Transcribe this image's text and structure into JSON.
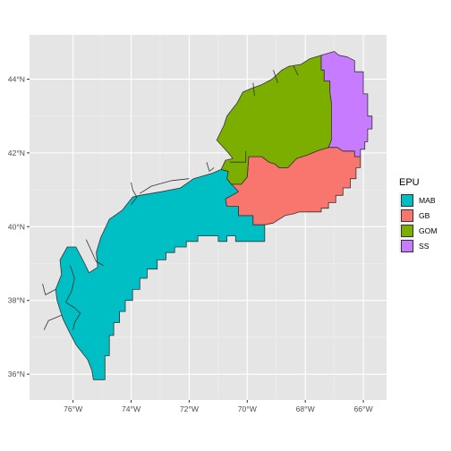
{
  "chart_data": {
    "type": "map",
    "title": "",
    "xlabel": "",
    "ylabel": "",
    "xlim": [
      -77.5,
      -65.2
    ],
    "ylim": [
      35.3,
      45.2
    ],
    "grid": true,
    "panel_background": "#e5e5e5",
    "legend": {
      "title": "EPU",
      "position": "right"
    },
    "x_ticks": [
      {
        "value": -76,
        "label": "76°W"
      },
      {
        "value": -74,
        "label": "74°W"
      },
      {
        "value": -72,
        "label": "72°W"
      },
      {
        "value": -70,
        "label": "70°W"
      },
      {
        "value": -68,
        "label": "68°W"
      },
      {
        "value": -66,
        "label": "66°W"
      }
    ],
    "y_ticks": [
      {
        "value": 36,
        "label": "36°N"
      },
      {
        "value": 38,
        "label": "38°N"
      },
      {
        "value": 40,
        "label": "40°N"
      },
      {
        "value": 42,
        "label": "42°N"
      },
      {
        "value": 44,
        "label": "44°N"
      }
    ],
    "regions": [
      {
        "name": "MAB",
        "color": "#00BFC4",
        "polygon": [
          [
            -74.9,
            35.85
          ],
          [
            -75.3,
            35.85
          ],
          [
            -75.35,
            36.1
          ],
          [
            -75.5,
            36.4
          ],
          [
            -75.9,
            36.8
          ],
          [
            -76.1,
            37.1
          ],
          [
            -76.35,
            37.5
          ],
          [
            -76.55,
            38.0
          ],
          [
            -76.6,
            38.3
          ],
          [
            -76.4,
            38.7
          ],
          [
            -76.45,
            39.1
          ],
          [
            -76.2,
            39.45
          ],
          [
            -75.9,
            39.45
          ],
          [
            -75.6,
            39.0
          ],
          [
            -75.45,
            38.75
          ],
          [
            -75.15,
            38.9
          ],
          [
            -75.2,
            39.3
          ],
          [
            -75.05,
            39.7
          ],
          [
            -74.75,
            40.2
          ],
          [
            -74.3,
            40.45
          ],
          [
            -73.95,
            40.8
          ],
          [
            -73.7,
            40.85
          ],
          [
            -72.95,
            40.95
          ],
          [
            -72.3,
            41.05
          ],
          [
            -71.85,
            41.3
          ],
          [
            -71.2,
            41.45
          ],
          [
            -70.9,
            41.55
          ],
          [
            -70.65,
            41.5
          ],
          [
            -70.7,
            41.3
          ],
          [
            -70.55,
            41.15
          ],
          [
            -70.2,
            41.15
          ],
          [
            -70.3,
            40.95
          ],
          [
            -70.75,
            40.75
          ],
          [
            -70.7,
            40.55
          ],
          [
            -70.3,
            40.55
          ],
          [
            -70.3,
            40.3
          ],
          [
            -69.8,
            40.3
          ],
          [
            -69.8,
            40.05
          ],
          [
            -69.4,
            40.05
          ],
          [
            -69.4,
            39.6
          ],
          [
            -70.0,
            39.6
          ],
          [
            -70.4,
            39.6
          ],
          [
            -70.4,
            39.75
          ],
          [
            -70.7,
            39.75
          ],
          [
            -70.7,
            39.6
          ],
          [
            -71.0,
            39.6
          ],
          [
            -71.0,
            39.75
          ],
          [
            -71.7,
            39.75
          ],
          [
            -71.7,
            39.6
          ],
          [
            -72.1,
            39.6
          ],
          [
            -72.1,
            39.45
          ],
          [
            -72.5,
            39.45
          ],
          [
            -72.5,
            39.3
          ],
          [
            -72.8,
            39.3
          ],
          [
            -72.8,
            39.1
          ],
          [
            -73.1,
            39.1
          ],
          [
            -73.1,
            38.85
          ],
          [
            -73.45,
            38.85
          ],
          [
            -73.45,
            38.6
          ],
          [
            -73.7,
            38.6
          ],
          [
            -73.7,
            38.3
          ],
          [
            -73.95,
            38.3
          ],
          [
            -73.95,
            38.0
          ],
          [
            -74.2,
            38.0
          ],
          [
            -74.2,
            37.7
          ],
          [
            -74.4,
            37.7
          ],
          [
            -74.4,
            37.4
          ],
          [
            -74.6,
            37.4
          ],
          [
            -74.6,
            37.05
          ],
          [
            -74.75,
            37.05
          ],
          [
            -74.75,
            36.5
          ],
          [
            -74.9,
            36.5
          ]
        ]
      },
      {
        "name": "GB",
        "color": "#F8766D",
        "polygon": [
          [
            -70.55,
            41.15
          ],
          [
            -70.2,
            41.15
          ],
          [
            -70.0,
            41.35
          ],
          [
            -69.95,
            41.9
          ],
          [
            -69.5,
            41.9
          ],
          [
            -69.25,
            41.75
          ],
          [
            -69.05,
            41.7
          ],
          [
            -68.9,
            41.6
          ],
          [
            -68.6,
            41.6
          ],
          [
            -68.3,
            41.85
          ],
          [
            -67.9,
            41.95
          ],
          [
            -67.6,
            42.05
          ],
          [
            -67.2,
            42.15
          ],
          [
            -66.9,
            42.15
          ],
          [
            -66.7,
            42.05
          ],
          [
            -66.3,
            42.05
          ],
          [
            -66.3,
            41.9
          ],
          [
            -66.1,
            41.9
          ],
          [
            -66.1,
            41.6
          ],
          [
            -66.25,
            41.6
          ],
          [
            -66.25,
            41.3
          ],
          [
            -66.45,
            41.3
          ],
          [
            -66.45,
            41.05
          ],
          [
            -66.7,
            41.05
          ],
          [
            -66.7,
            40.85
          ],
          [
            -66.95,
            40.85
          ],
          [
            -66.95,
            40.65
          ],
          [
            -67.2,
            40.65
          ],
          [
            -67.2,
            40.5
          ],
          [
            -67.45,
            40.5
          ],
          [
            -67.45,
            40.4
          ],
          [
            -68.2,
            40.4
          ],
          [
            -68.4,
            40.35
          ],
          [
            -68.7,
            40.3
          ],
          [
            -68.9,
            40.2
          ],
          [
            -69.1,
            40.1
          ],
          [
            -69.4,
            40.05
          ],
          [
            -69.8,
            40.05
          ],
          [
            -69.8,
            40.3
          ],
          [
            -70.3,
            40.3
          ],
          [
            -70.3,
            40.55
          ],
          [
            -70.7,
            40.55
          ],
          [
            -70.75,
            40.75
          ],
          [
            -70.3,
            40.95
          ]
        ]
      },
      {
        "name": "GOM",
        "color": "#7CAE00",
        "polygon": [
          [
            -69.95,
            41.9
          ],
          [
            -70.0,
            41.35
          ],
          [
            -70.2,
            41.15
          ],
          [
            -70.55,
            41.15
          ],
          [
            -70.7,
            41.3
          ],
          [
            -70.65,
            41.5
          ],
          [
            -70.9,
            41.55
          ],
          [
            -70.75,
            41.8
          ],
          [
            -70.5,
            41.85
          ],
          [
            -70.65,
            42.0
          ],
          [
            -71.05,
            42.35
          ],
          [
            -70.8,
            42.75
          ],
          [
            -70.7,
            43.0
          ],
          [
            -70.35,
            43.35
          ],
          [
            -70.15,
            43.65
          ],
          [
            -69.85,
            43.75
          ],
          [
            -69.5,
            43.85
          ],
          [
            -69.15,
            44.0
          ],
          [
            -68.8,
            44.25
          ],
          [
            -68.55,
            44.35
          ],
          [
            -68.15,
            44.4
          ],
          [
            -67.85,
            44.55
          ],
          [
            -67.45,
            44.65
          ],
          [
            -67.45,
            44.25
          ],
          [
            -67.35,
            44.25
          ],
          [
            -67.35,
            43.95
          ],
          [
            -67.15,
            43.95
          ],
          [
            -67.15,
            43.65
          ],
          [
            -67.1,
            43.35
          ],
          [
            -67.1,
            42.9
          ],
          [
            -67.1,
            42.35
          ],
          [
            -67.2,
            42.15
          ],
          [
            -67.6,
            42.05
          ],
          [
            -67.9,
            41.95
          ],
          [
            -68.3,
            41.85
          ],
          [
            -68.6,
            41.6
          ],
          [
            -68.9,
            41.6
          ],
          [
            -69.05,
            41.7
          ],
          [
            -69.25,
            41.75
          ],
          [
            -69.5,
            41.9
          ]
        ]
      },
      {
        "name": "SS",
        "color": "#C77CFF",
        "polygon": [
          [
            -67.45,
            44.65
          ],
          [
            -67.0,
            44.75
          ],
          [
            -66.85,
            44.65
          ],
          [
            -66.55,
            44.6
          ],
          [
            -66.3,
            44.5
          ],
          [
            -66.3,
            44.2
          ],
          [
            -66.0,
            44.2
          ],
          [
            -66.0,
            43.6
          ],
          [
            -65.85,
            43.6
          ],
          [
            -65.85,
            43.0
          ],
          [
            -65.7,
            43.0
          ],
          [
            -65.7,
            42.65
          ],
          [
            -65.85,
            42.65
          ],
          [
            -65.85,
            42.3
          ],
          [
            -65.95,
            42.3
          ],
          [
            -65.95,
            42.1
          ],
          [
            -66.1,
            42.1
          ],
          [
            -66.1,
            41.9
          ],
          [
            -66.3,
            41.9
          ],
          [
            -66.3,
            42.05
          ],
          [
            -66.7,
            42.05
          ],
          [
            -66.9,
            42.15
          ],
          [
            -67.2,
            42.15
          ],
          [
            -67.1,
            42.35
          ],
          [
            -67.1,
            42.9
          ],
          [
            -67.1,
            43.35
          ],
          [
            -67.15,
            43.65
          ],
          [
            -67.15,
            43.95
          ],
          [
            -67.35,
            43.95
          ],
          [
            -67.35,
            44.25
          ],
          [
            -67.45,
            44.25
          ]
        ]
      }
    ],
    "coastline_features": [
      [
        [
          -76.1,
          38.95
        ],
        [
          -75.95,
          38.6
        ],
        [
          -76.05,
          38.25
        ],
        [
          -76.25,
          37.95
        ],
        [
          -75.95,
          37.8
        ],
        [
          -75.75,
          37.65
        ],
        [
          -75.95,
          37.4
        ],
        [
          -76.0,
          37.2
        ]
      ],
      [
        [
          -76.6,
          38.3
        ],
        [
          -76.95,
          38.15
        ],
        [
          -77.05,
          38.45
        ]
      ],
      [
        [
          -76.4,
          37.6
        ],
        [
          -76.85,
          37.45
        ],
        [
          -77.0,
          37.2
        ]
      ],
      [
        [
          -75.55,
          39.65
        ],
        [
          -75.2,
          39.05
        ],
        [
          -74.95,
          38.95
        ]
      ],
      [
        [
          -74.0,
          40.6
        ],
        [
          -73.8,
          40.8
        ],
        [
          -73.95,
          41.0
        ],
        [
          -74.0,
          41.2
        ]
      ],
      [
        [
          -72.0,
          41.3
        ],
        [
          -72.6,
          41.25
        ],
        [
          -73.3,
          41.1
        ],
        [
          -73.7,
          40.9
        ]
      ],
      [
        [
          -71.4,
          41.75
        ],
        [
          -71.3,
          41.5
        ],
        [
          -71.15,
          41.6
        ]
      ],
      [
        [
          -70.6,
          41.75
        ],
        [
          -70.05,
          41.75
        ],
        [
          -70.05,
          42.05
        ]
      ],
      [
        [
          -69.8,
          43.9
        ],
        [
          -69.75,
          43.55
        ]
      ],
      [
        [
          -69.1,
          44.25
        ],
        [
          -68.95,
          43.9
        ]
      ],
      [
        [
          -68.4,
          44.35
        ],
        [
          -68.25,
          44.1
        ]
      ]
    ]
  }
}
